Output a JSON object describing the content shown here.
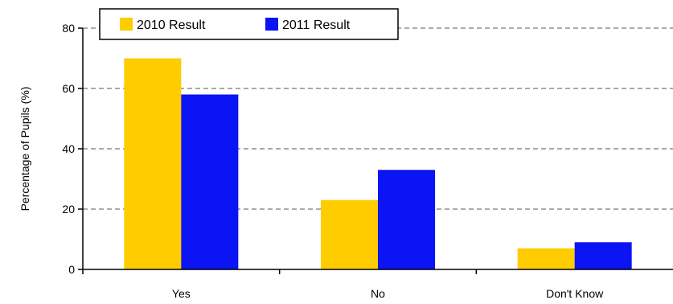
{
  "chart_data": {
    "type": "bar",
    "categories": [
      "Yes",
      "No",
      "Don't Know"
    ],
    "series": [
      {
        "name": "2010 Result",
        "values": [
          70,
          23,
          7
        ],
        "color": "#FFCC00"
      },
      {
        "name": "2011 Result",
        "values": [
          58,
          33,
          9
        ],
        "color": "#0A14F5"
      }
    ],
    "xlabel": "",
    "ylabel": "Percentage of Pupils (%)",
    "ylim": [
      0,
      80
    ],
    "yticks": [
      0,
      20,
      40,
      60,
      80
    ],
    "grid": "horizontal dashed",
    "legend_position": "top-left"
  }
}
